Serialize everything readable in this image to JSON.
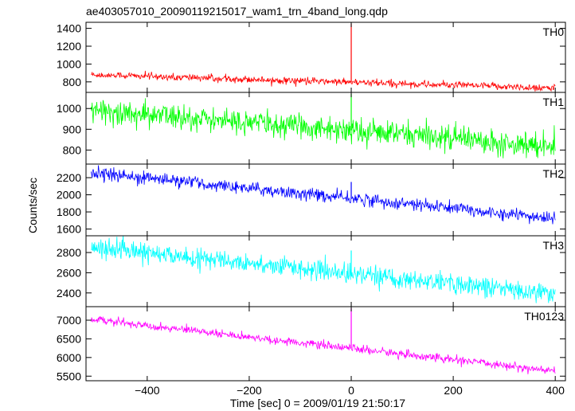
{
  "chart_data": {
    "type": "line",
    "title": "ae403057010_20090119215017_wam1_trn_4band_long.qdp",
    "xlabel": "Time [sec] 0 = 2009/01/19 21:50:17",
    "ylabel": "Counts/sec",
    "xlim": [
      -520,
      420
    ],
    "x_ticks": [
      -400,
      -200,
      0,
      200,
      400
    ],
    "x_tick_labels": [
      "−400",
      "−200",
      "0",
      "200",
      "400"
    ],
    "x_range_data": [
      -510,
      400
    ],
    "panels": [
      {
        "name": "TH0",
        "color": "#ff0000",
        "ylim": [
          700,
          1450
        ],
        "y_ticks": [
          800,
          1000,
          1200,
          1400
        ],
        "trend_start": 880,
        "trend_end": 730,
        "noise": 30,
        "spike": {
          "x": 0,
          "peak": 1450
        }
      },
      {
        "name": "TH1",
        "color": "#00ff00",
        "ylim": [
          740,
          1070
        ],
        "y_ticks": [
          800,
          900,
          1000
        ],
        "trend_start": 990,
        "trend_end": 820,
        "noise": 45,
        "spike": {
          "x": 0,
          "peak": 1070
        }
      },
      {
        "name": "TH2",
        "color": "#0000ff",
        "ylim": [
          1540,
          2340
        ],
        "y_ticks": [
          1600,
          1800,
          2000,
          2200
        ],
        "trend_start": 2260,
        "trend_end": 1720,
        "noise": 55,
        "spike": {
          "x": 0,
          "peak": 2150
        }
      },
      {
        "name": "TH3",
        "color": "#00ffff",
        "ylim": [
          2280,
          2950
        ],
        "y_ticks": [
          2400,
          2600,
          2800
        ],
        "trend_start": 2850,
        "trend_end": 2390,
        "noise": 70,
        "spike": {
          "x": 0,
          "peak": 2820
        }
      },
      {
        "name": "TH0123",
        "color": "#ff00ff",
        "ylim": [
          5420,
          7320
        ],
        "y_ticks": [
          5500,
          6000,
          6500,
          7000
        ],
        "trend_start": 7030,
        "trend_end": 5630,
        "noise": 80,
        "spike": {
          "x": 0,
          "peak": 7320
        }
      }
    ],
    "grid": false
  }
}
